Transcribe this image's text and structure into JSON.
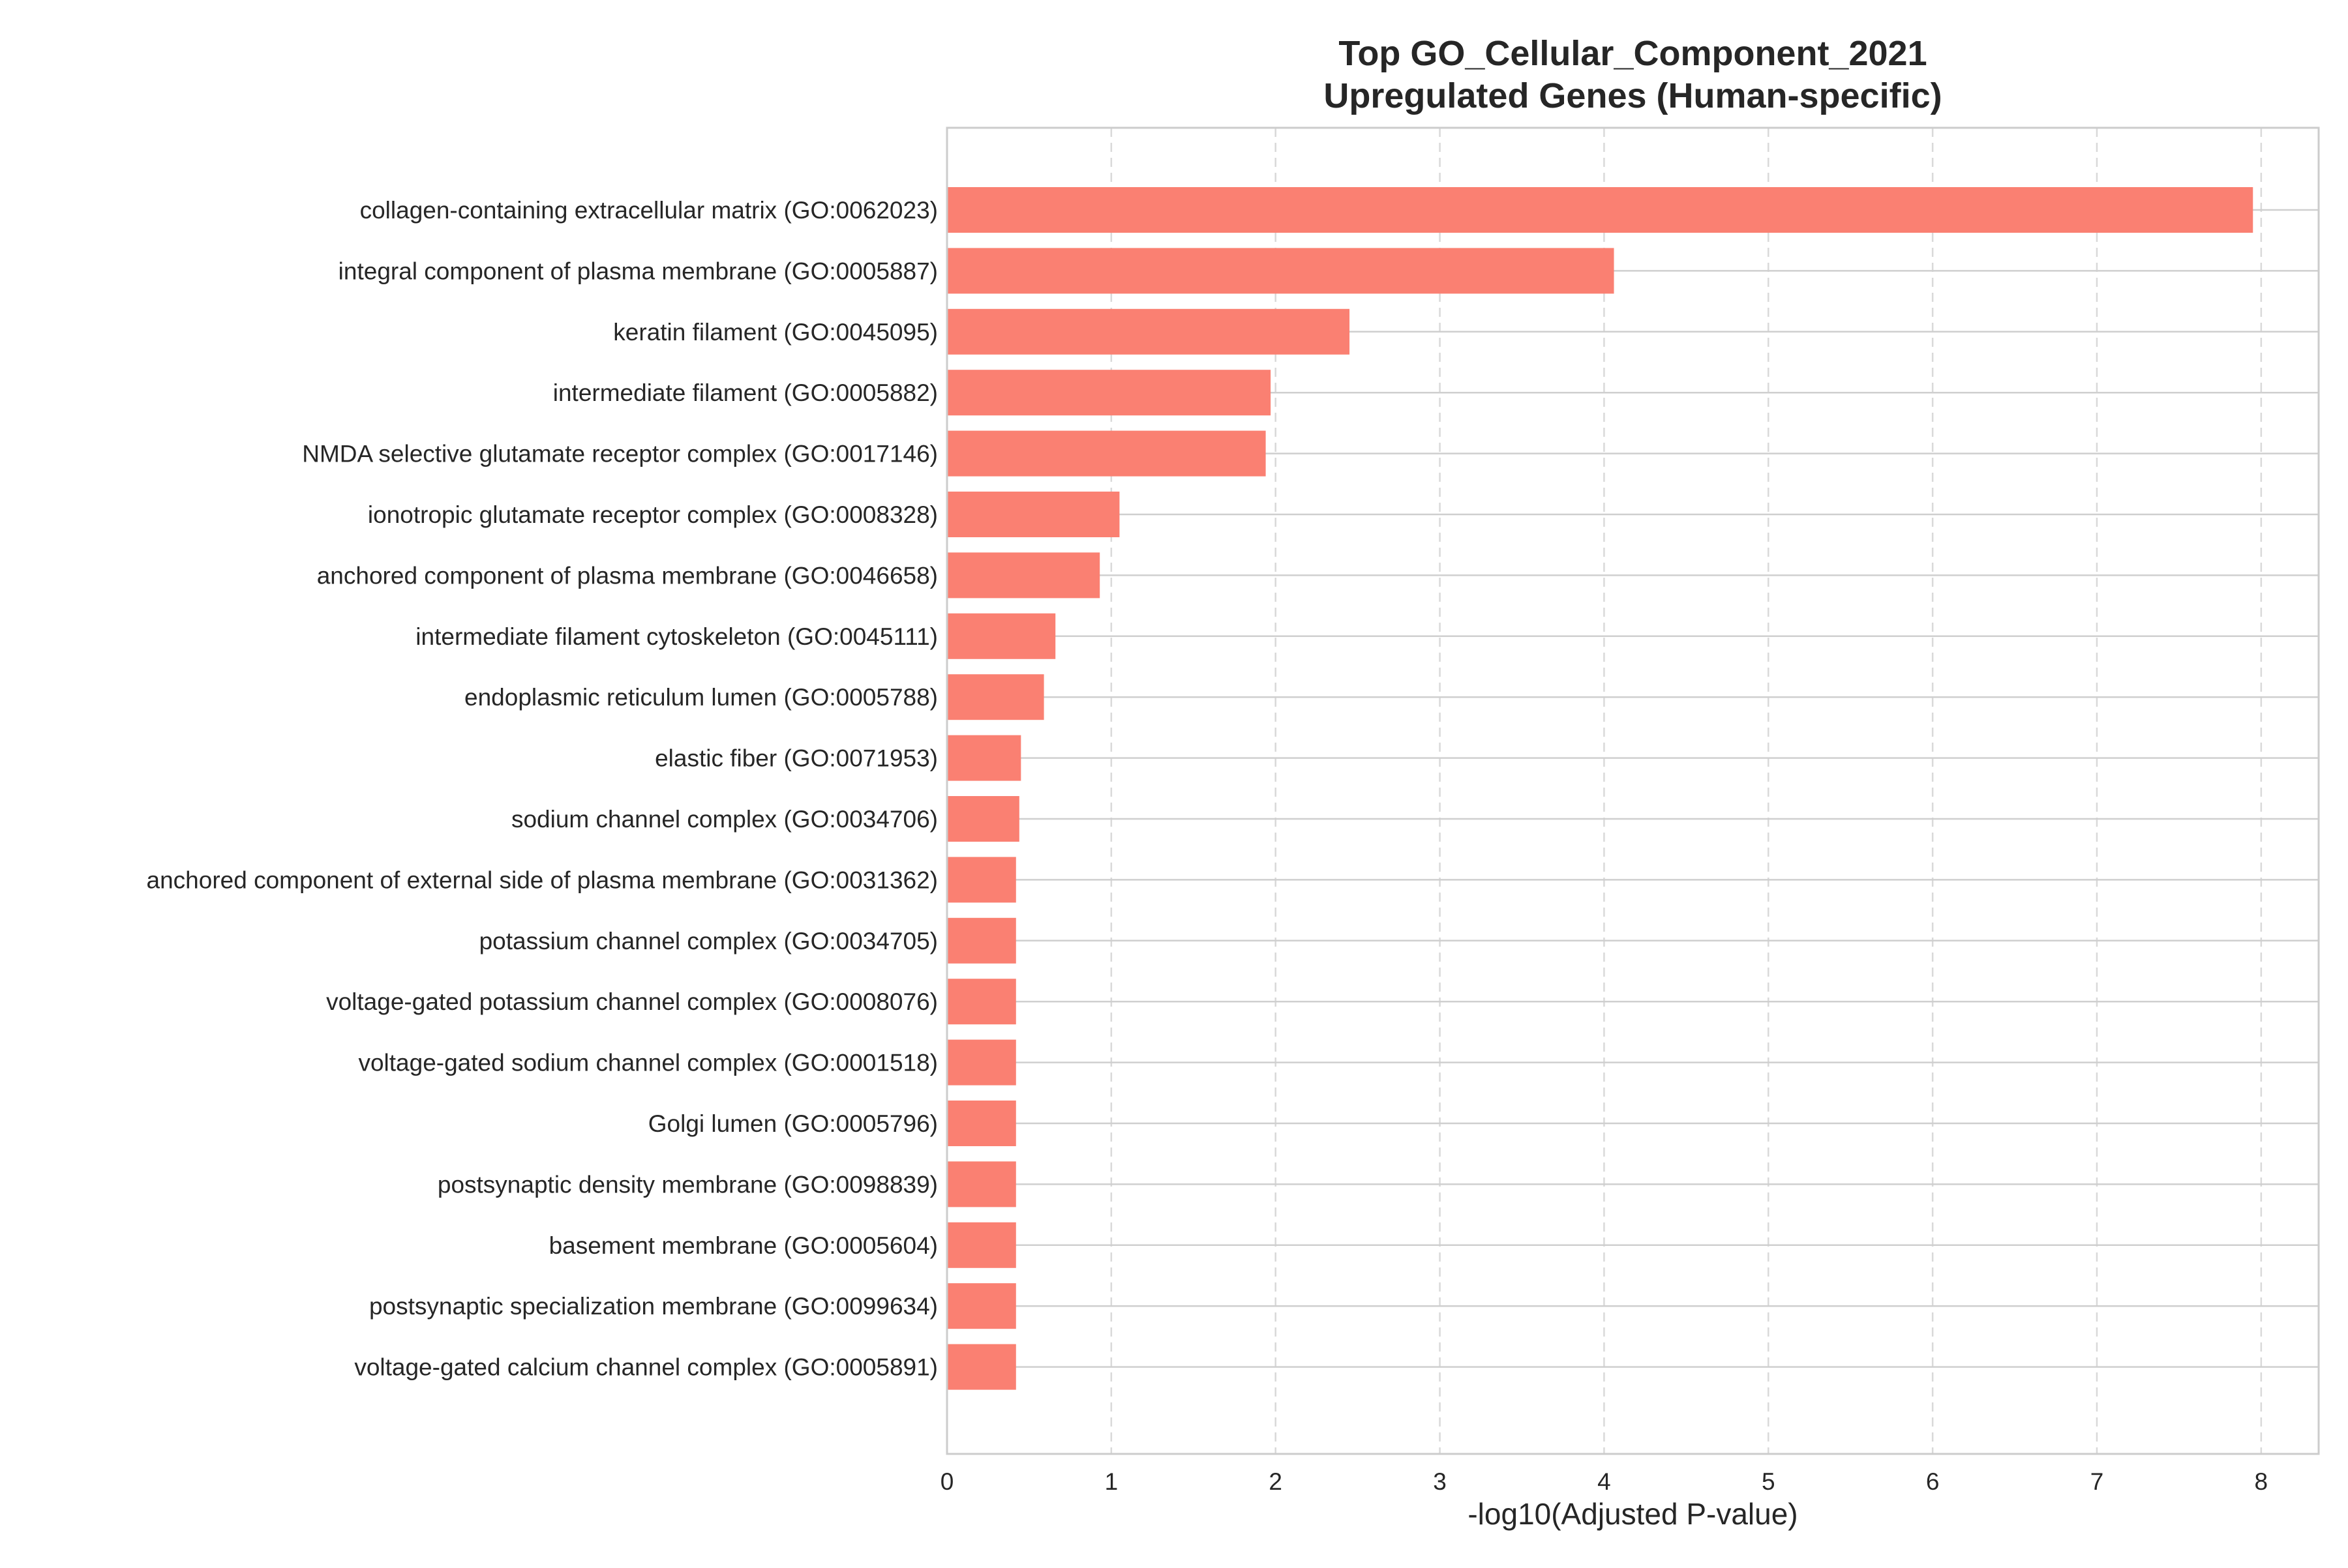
{
  "chart_data": {
    "type": "bar",
    "orientation": "horizontal",
    "title": "Top GO_Cellular_Component_2021\nUpregulated Genes (Human-specific)",
    "title_lines": [
      "Top GO_Cellular_Component_2021",
      "Upregulated Genes (Human-specific)"
    ],
    "xlabel": "-log10(Adjusted P-value)",
    "ylabel": "",
    "xlim": [
      0,
      8.35
    ],
    "xticks": [
      "0",
      "1",
      "2",
      "3",
      "4",
      "5",
      "6",
      "7",
      "8"
    ],
    "grid": true,
    "bar_color": "#fa8072",
    "categories": [
      "collagen-containing extracellular matrix (GO:0062023)",
      "integral component of plasma membrane (GO:0005887)",
      "keratin filament (GO:0045095)",
      "intermediate filament (GO:0005882)",
      "NMDA selective glutamate receptor complex (GO:0017146)",
      "ionotropic glutamate receptor complex (GO:0008328)",
      "anchored component of plasma membrane (GO:0046658)",
      "intermediate filament cytoskeleton (GO:0045111)",
      "endoplasmic reticulum lumen (GO:0005788)",
      "elastic fiber (GO:0071953)",
      "sodium channel complex (GO:0034706)",
      "anchored component of external side of plasma membrane (GO:0031362)",
      "potassium channel complex (GO:0034705)",
      "voltage-gated potassium channel complex (GO:0008076)",
      "voltage-gated sodium channel complex (GO:0001518)",
      "Golgi lumen (GO:0005796)",
      "postsynaptic density membrane (GO:0098839)",
      "basement membrane (GO:0005604)",
      "postsynaptic specialization membrane (GO:0099634)",
      "voltage-gated calcium channel complex (GO:0005891)"
    ],
    "values": [
      7.95,
      4.06,
      2.45,
      1.97,
      1.94,
      1.05,
      0.93,
      0.66,
      0.59,
      0.45,
      0.44,
      0.42,
      0.42,
      0.42,
      0.42,
      0.42,
      0.42,
      0.42,
      0.42,
      0.42
    ]
  }
}
